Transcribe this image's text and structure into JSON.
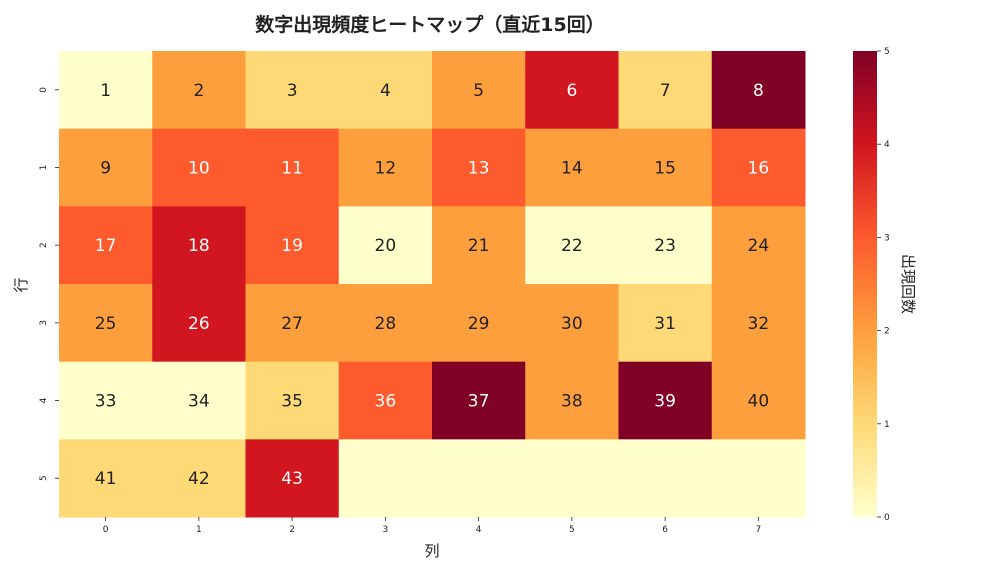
{
  "chart_data": {
    "type": "heatmap",
    "title": "数字出現頻度ヒートマップ（直近15回）",
    "xlabel": "列",
    "ylabel": "行",
    "colorbar_label": "出現回数",
    "x_ticks": [
      "0",
      "1",
      "2",
      "3",
      "4",
      "5",
      "6",
      "7"
    ],
    "y_ticks": [
      "0",
      "1",
      "2",
      "3",
      "4",
      "5"
    ],
    "colorbar_ticks": [
      "0",
      "1",
      "2",
      "3",
      "4",
      "5"
    ],
    "vmin": 0,
    "vmax": 5,
    "colormap": "YlOrRd",
    "values": [
      [
        0,
        2,
        1,
        1,
        2,
        4,
        1,
        5
      ],
      [
        2,
        3,
        3,
        2,
        3,
        2,
        2,
        3
      ],
      [
        3,
        4,
        3,
        0,
        2,
        0,
        0,
        2
      ],
      [
        2,
        4,
        2,
        2,
        2,
        2,
        1,
        2
      ],
      [
        0,
        0,
        1,
        3,
        5,
        2,
        5,
        2
      ],
      [
        1,
        1,
        4,
        0,
        0,
        0,
        0,
        0
      ]
    ],
    "labels": [
      [
        "1",
        "2",
        "3",
        "4",
        "5",
        "6",
        "7",
        "8"
      ],
      [
        "9",
        "10",
        "11",
        "12",
        "13",
        "14",
        "15",
        "16"
      ],
      [
        "17",
        "18",
        "19",
        "20",
        "21",
        "22",
        "23",
        "24"
      ],
      [
        "25",
        "26",
        "27",
        "28",
        "29",
        "30",
        "31",
        "32"
      ],
      [
        "33",
        "34",
        "35",
        "36",
        "37",
        "38",
        "39",
        "40"
      ],
      [
        "41",
        "42",
        "43",
        "",
        "",
        "",
        "",
        ""
      ]
    ],
    "colors": {
      "0": "#ffffcc",
      "1": "#fed976",
      "2": "#fd9f3c",
      "3": "#fd5a2e",
      "4": "#d1161f",
      "5": "#800026"
    }
  }
}
